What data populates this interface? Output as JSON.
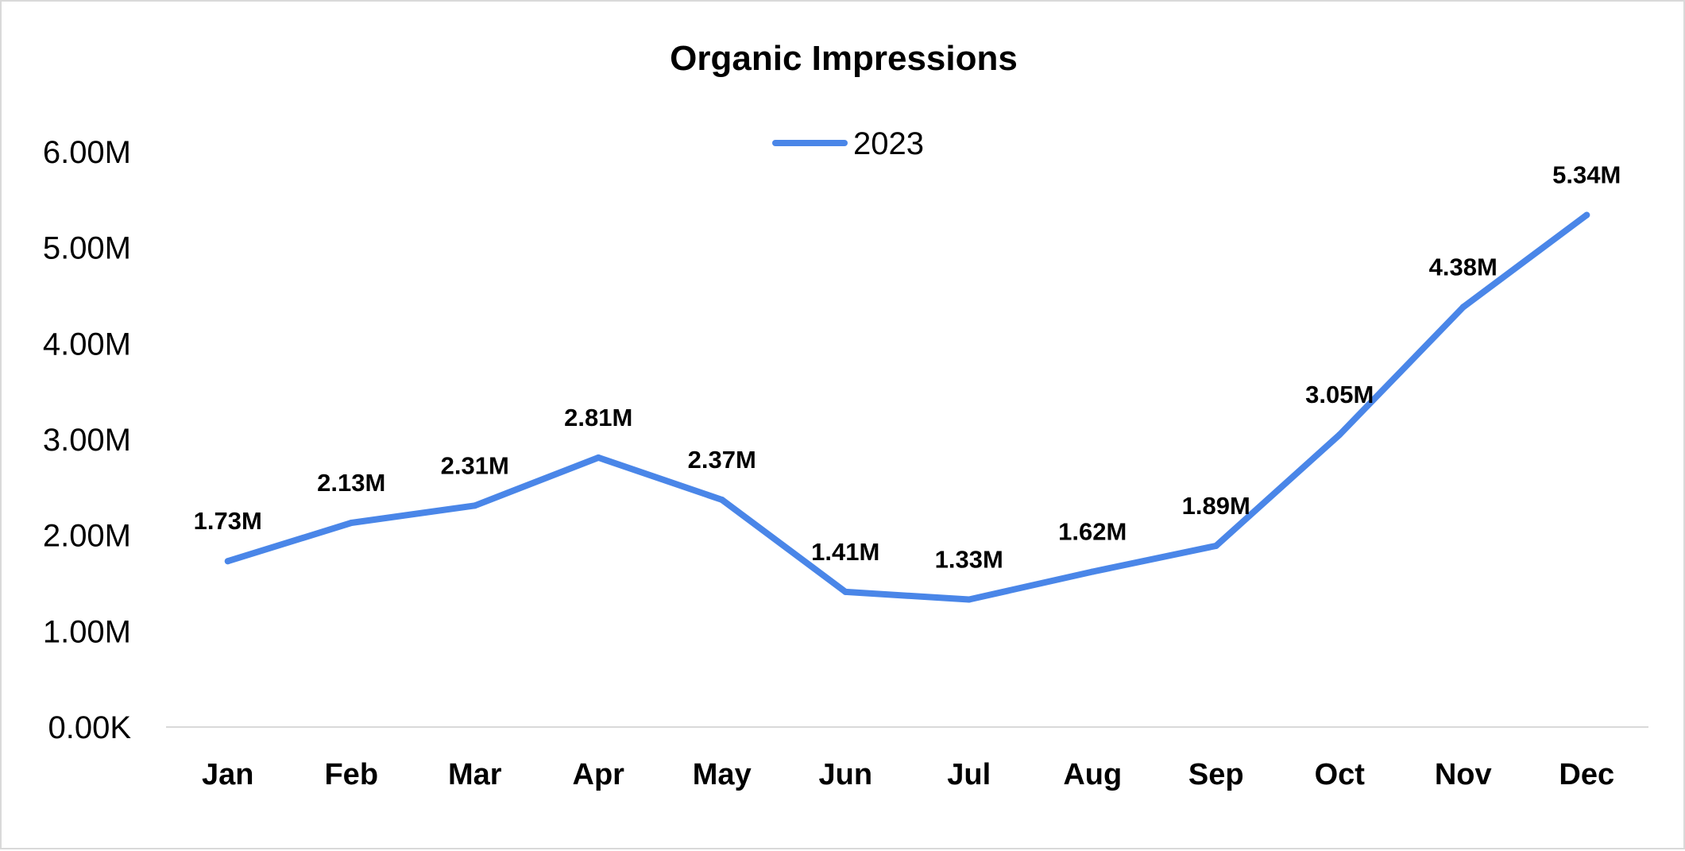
{
  "chart_data": {
    "type": "line",
    "title": "Organic Impressions",
    "xlabel": "",
    "ylabel": "",
    "categories": [
      "Jan",
      "Feb",
      "Mar",
      "Apr",
      "May",
      "Jun",
      "Jul",
      "Aug",
      "Sep",
      "Oct",
      "Nov",
      "Dec"
    ],
    "series": [
      {
        "name": "2023",
        "color": "#4a86e8",
        "values": [
          1.73,
          2.13,
          2.31,
          2.81,
          2.37,
          1.41,
          1.33,
          1.62,
          1.89,
          3.05,
          4.38,
          5.34
        ],
        "labels": [
          "1.73M",
          "2.13M",
          "2.31M",
          "2.81M",
          "2.37M",
          "1.41M",
          "1.33M",
          "1.62M",
          "1.89M",
          "3.05M",
          "4.38M",
          "5.34M"
        ]
      }
    ],
    "y_unit": "millions",
    "ylim": [
      0,
      6
    ],
    "yticks": [
      0,
      1,
      2,
      3,
      4,
      5,
      6
    ],
    "ytick_labels": [
      "0.00K",
      "1.00M",
      "2.00M",
      "3.00M",
      "4.00M",
      "5.00M",
      "6.00M"
    ],
    "grid": false,
    "legend_position": "top-center"
  }
}
